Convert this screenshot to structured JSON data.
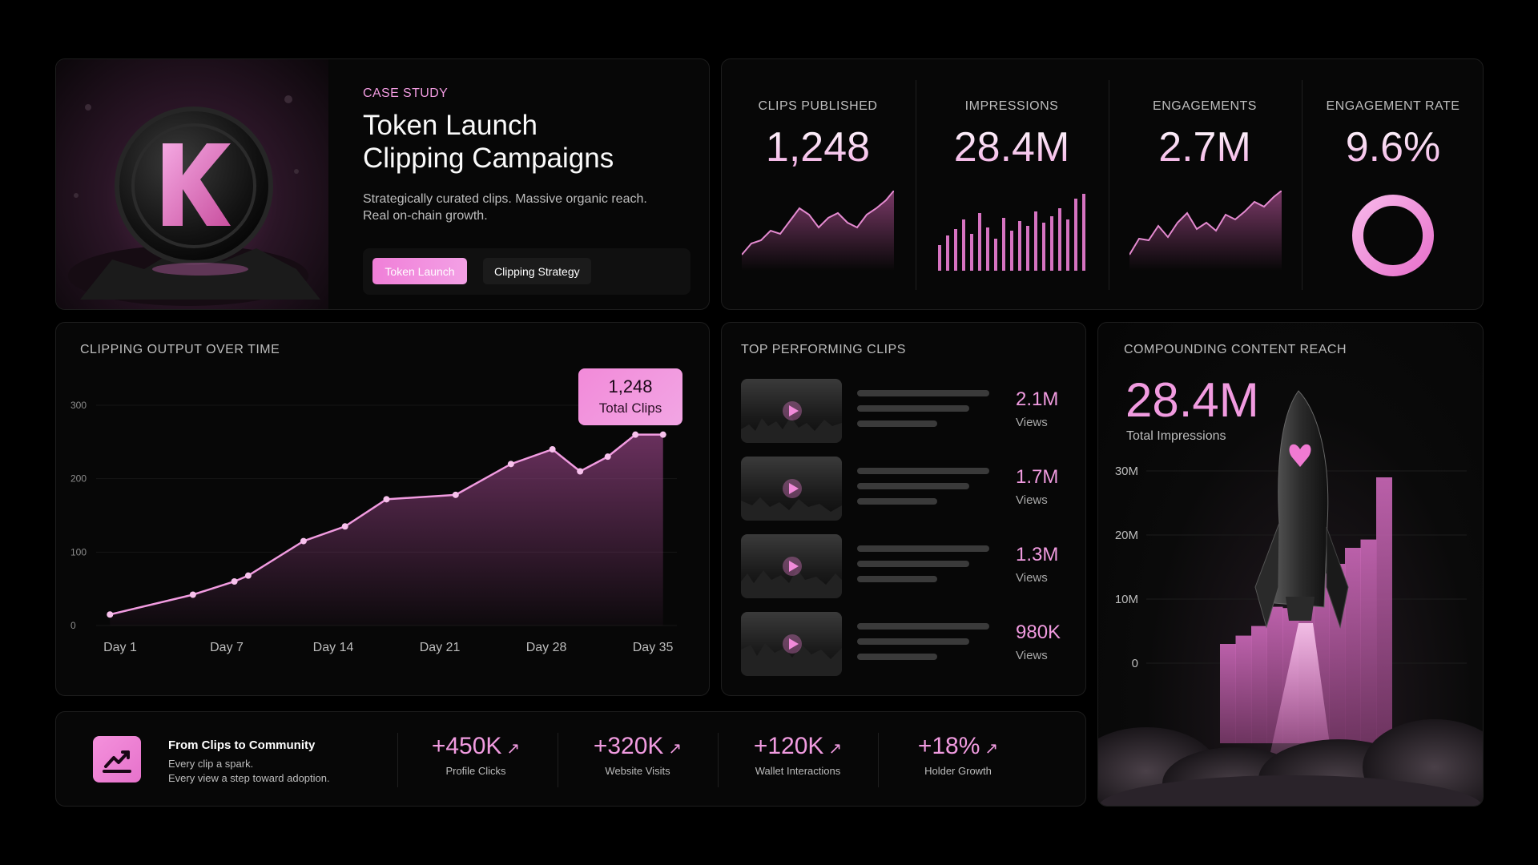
{
  "hero": {
    "eyebrow": "CASE STUDY",
    "title_line1": "Token Launch",
    "title_line2": "Clipping Campaigns",
    "desc_line1": "Strategically curated clips. Massive organic reach.",
    "desc_line2": "Real on-chain growth.",
    "tags": [
      "Token Launch",
      "Clipping Strategy"
    ]
  },
  "kpis": [
    {
      "label": "CLIPS PUBLISHED",
      "value": "1,248",
      "visual": "area-sparkline"
    },
    {
      "label": "IMPRESSIONS",
      "value": "28.4M",
      "visual": "bar-sparkline"
    },
    {
      "label": "ENGAGEMENTS",
      "value": "2.7M",
      "visual": "area-sparkline"
    },
    {
      "label": "ENGAGEMENT RATE",
      "value": "9.6%",
      "visual": "ring"
    }
  ],
  "output": {
    "title": "CLIPPING OUTPUT OVER TIME",
    "badge_value": "1,248",
    "badge_label": "Total Clips"
  },
  "top_clips": {
    "title": "TOP PERFORMING CLIPS",
    "items": [
      {
        "views": "2.1M",
        "label": "Views"
      },
      {
        "views": "1.7M",
        "label": "Views"
      },
      {
        "views": "1.3M",
        "label": "Views"
      },
      {
        "views": "980K",
        "label": "Views"
      }
    ]
  },
  "reach": {
    "title": "COMPOUNDING CONTENT REACH",
    "value": "28.4M",
    "label": "Total Impressions"
  },
  "community": {
    "title": "From Clips to Community",
    "sub1": "Every clip a spark.",
    "sub2": "Every view a step toward adoption.",
    "metrics": [
      {
        "value": "+450K",
        "label": "Profile Clicks"
      },
      {
        "value": "+320K",
        "label": "Website Visits"
      },
      {
        "value": "+120K",
        "label": "Wallet Interactions"
      },
      {
        "value": "+18%",
        "label": "Holder Growth"
      }
    ]
  },
  "colors": {
    "accent": "#f19be0",
    "background": "#000000",
    "panel": "#070707"
  },
  "chart_data": [
    {
      "type": "line",
      "title": "CLIPPING OUTPUT OVER TIME",
      "x_ticks": [
        "Day 1",
        "Day 7",
        "Day 14",
        "Day 21",
        "Day 28",
        "Day 35"
      ],
      "y_ticks": [
        "0",
        "100",
        "200",
        "300"
      ],
      "ylim": [
        0,
        300
      ],
      "x": [
        1,
        7,
        10,
        11,
        15,
        18,
        21,
        26,
        30,
        33,
        35,
        37,
        39,
        41
      ],
      "values": [
        15,
        42,
        60,
        68,
        115,
        135,
        172,
        178,
        220,
        240,
        210,
        230,
        260,
        260
      ],
      "grid": true
    },
    {
      "type": "bar",
      "title": "COMPOUNDING CONTENT REACH",
      "y_ticks": [
        "0",
        "10M",
        "20M",
        "30M"
      ],
      "ylim": [
        0,
        30000000
      ],
      "values": [
        3000000,
        4300000,
        5800000,
        8800000,
        8600000,
        13000000,
        14000000,
        15500000,
        18000000,
        19300000,
        29000000
      ],
      "grid": true
    }
  ]
}
